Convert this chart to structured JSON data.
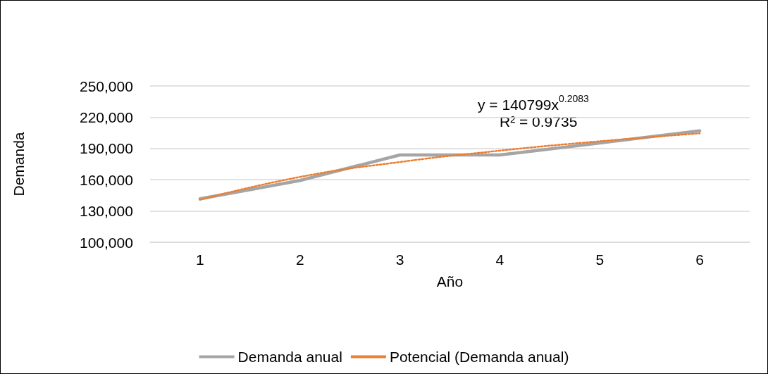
{
  "chart_data": {
    "type": "line",
    "xlabel": "Año",
    "ylabel": "Demanda",
    "categories": [
      "1",
      "2",
      "3",
      "4",
      "5",
      "6"
    ],
    "series": [
      {
        "name": "Demanda anual",
        "color": "#a5a5a5",
        "values": [
          141700,
          159300,
          183800,
          183800,
          195200,
          207000
        ]
      },
      {
        "name": "Potencial (Demanda anual)",
        "color": "#ed7d31",
        "line_style": "dotted",
        "x": [
          "1",
          "2",
          "3",
          "4",
          "5",
          "6"
        ],
        "values": [
          140800,
          162700,
          177000,
          187900,
          196900,
          204500
        ]
      }
    ],
    "ylim": [
      100000,
      250000
    ],
    "yticks": [
      {
        "value": 100000,
        "label": "100,000"
      },
      {
        "value": 130000,
        "label": "130,000"
      },
      {
        "value": 160000,
        "label": "160,000"
      },
      {
        "value": 190000,
        "label": "190,000"
      },
      {
        "value": 220000,
        "label": "220,000"
      },
      {
        "value": 250000,
        "label": "250,000"
      }
    ],
    "grid": "y",
    "legend": "bottom",
    "marker": "none",
    "annotations": [
      "y = 140799x$^{0.2083}$",
      "R² = 0.9735"
    ]
  }
}
